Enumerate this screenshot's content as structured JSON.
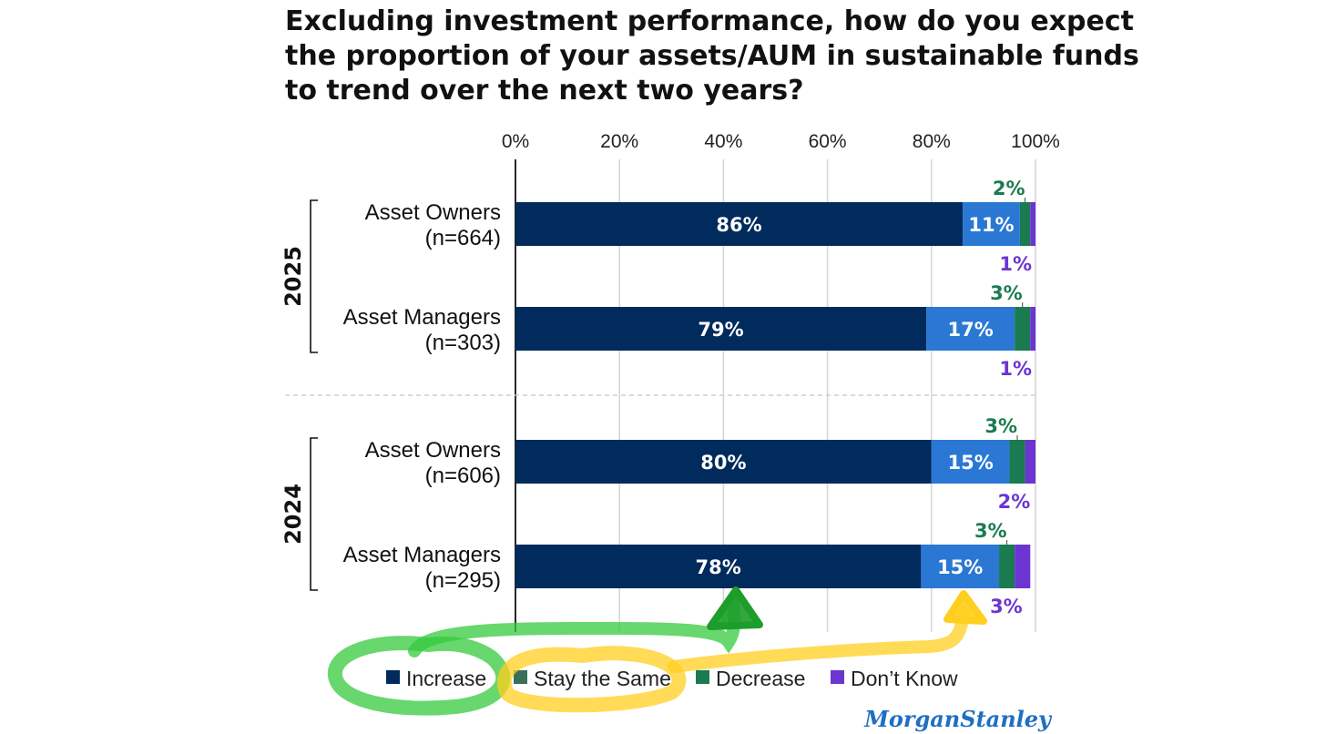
{
  "chart_data": {
    "type": "bar",
    "orientation": "horizontal",
    "stacked": true,
    "title_lines": [
      "Excluding investment performance, how do you expect",
      "the proportion of your assets/AUM in sustainable funds",
      "to trend over the next two years?"
    ],
    "xlim": [
      0,
      100
    ],
    "xticks": [
      "0%",
      "20%",
      "40%",
      "60%",
      "80%",
      "100%"
    ],
    "grid": true,
    "groups": [
      {
        "year": "2025",
        "rows": [
          {
            "label": "Asset Owners",
            "sublabel": "(n=664)",
            "values": [
              86,
              11,
              2,
              1
            ],
            "labels": [
              "86%",
              "11%",
              "2%",
              "1%"
            ]
          },
          {
            "label": "Asset Managers",
            "sublabel": "(n=303)",
            "values": [
              79,
              17,
              3,
              1
            ],
            "labels": [
              "79%",
              "17%",
              "3%",
              "1%"
            ]
          }
        ]
      },
      {
        "year": "2024",
        "rows": [
          {
            "label": "Asset Owners",
            "sublabel": "(n=606)",
            "values": [
              80,
              15,
              3,
              2
            ],
            "labels": [
              "80%",
              "15%",
              "3%",
              "2%"
            ]
          },
          {
            "label": "Asset Managers",
            "sublabel": "(n=295)",
            "values": [
              78,
              15,
              3,
              3
            ],
            "labels": [
              "78%",
              "15%",
              "3%",
              "3%"
            ]
          }
        ]
      }
    ],
    "series": [
      {
        "name": "Increase",
        "color": "#002b5c",
        "label_color": "#ffffff"
      },
      {
        "name": "Stay the Same",
        "color": "#2a78d4",
        "label_color": "#ffffff",
        "legend_swatch": "#3a6f5b"
      },
      {
        "name": "Decrease",
        "color": "#1a7a50",
        "label_color": "#1a7a50"
      },
      {
        "name": "Don’t Know",
        "color": "#6c35d2",
        "label_color": "#6c35d2"
      }
    ],
    "legend_position": "bottom",
    "brand": "MorganStanley",
    "brand_color": "#1f6fc2",
    "annotation_colors": {
      "green_highlight": "#35c93d",
      "yellow_highlight": "#ffcf1f",
      "green_arrow": "#1d9d2a"
    }
  }
}
